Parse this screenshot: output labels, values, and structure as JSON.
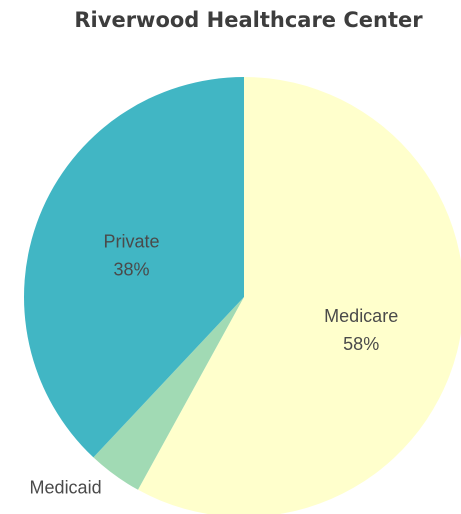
{
  "chart_data": {
    "type": "pie",
    "title": "Riverwood Healthcare Center",
    "slices": [
      {
        "label": "Medicare",
        "value": 58,
        "percent_label": "58%",
        "color": "#ffffcc"
      },
      {
        "label": "Medicaid",
        "value": 4,
        "percent_label": "",
        "color": "#a1dab4"
      },
      {
        "label": "Private",
        "value": 38,
        "percent_label": "38%",
        "color": "#41b6c4"
      }
    ],
    "start_angle": "12 o'clock",
    "direction": "clockwise",
    "legend": "none"
  }
}
